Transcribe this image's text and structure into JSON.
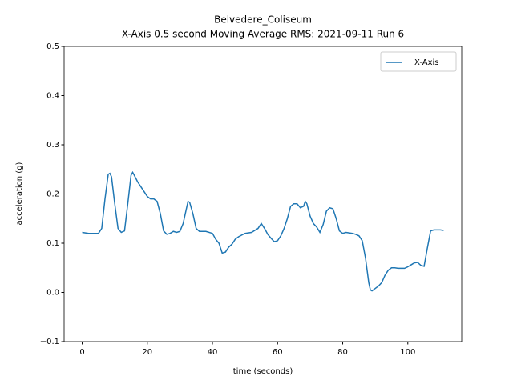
{
  "chart_data": {
    "type": "line",
    "title": "Belvedere_Coliseum",
    "subtitle": "X-Axis 0.5 second Moving Average RMS: 2021-09-11 Run 6",
    "x_label": "time (seconds)",
    "y_label": "acceleration (g)",
    "x": [
      0,
      2,
      4,
      5,
      6,
      7,
      8,
      8.5,
      9,
      10,
      11,
      12,
      13,
      14,
      15,
      15.5,
      16,
      17,
      18,
      19,
      20,
      21,
      22,
      23,
      24,
      25,
      26,
      27,
      28,
      29,
      30,
      31,
      32,
      32.5,
      33,
      34,
      35,
      36,
      38,
      40,
      41,
      42,
      43,
      44,
      45,
      46,
      47,
      48,
      50,
      52,
      54,
      55,
      56,
      57,
      58,
      59,
      60,
      61,
      62,
      63,
      64,
      65,
      66,
      67,
      68,
      68.5,
      69,
      70,
      71,
      72,
      73,
      74,
      75,
      76,
      77,
      78,
      79,
      80,
      81,
      82,
      83,
      84,
      85,
      86,
      87,
      88,
      88.5,
      89,
      90,
      91,
      92,
      93,
      94,
      95,
      96,
      97,
      98,
      99,
      100,
      101,
      102,
      103,
      104,
      105,
      106,
      107,
      108,
      110,
      111
    ],
    "series": [
      {
        "name": "X-Axis",
        "color": "#1f77b4",
        "values": [
          0.122,
          0.12,
          0.12,
          0.12,
          0.13,
          0.19,
          0.24,
          0.242,
          0.235,
          0.18,
          0.13,
          0.122,
          0.125,
          0.18,
          0.238,
          0.244,
          0.238,
          0.225,
          0.215,
          0.205,
          0.195,
          0.19,
          0.19,
          0.185,
          0.16,
          0.125,
          0.118,
          0.12,
          0.124,
          0.122,
          0.124,
          0.14,
          0.17,
          0.185,
          0.183,
          0.16,
          0.13,
          0.124,
          0.124,
          0.12,
          0.108,
          0.1,
          0.08,
          0.082,
          0.092,
          0.098,
          0.108,
          0.113,
          0.12,
          0.122,
          0.13,
          0.14,
          0.13,
          0.118,
          0.11,
          0.103,
          0.105,
          0.115,
          0.13,
          0.15,
          0.175,
          0.18,
          0.18,
          0.172,
          0.175,
          0.185,
          0.18,
          0.155,
          0.14,
          0.133,
          0.122,
          0.138,
          0.165,
          0.172,
          0.17,
          0.15,
          0.125,
          0.12,
          0.122,
          0.121,
          0.12,
          0.118,
          0.115,
          0.105,
          0.07,
          0.02,
          0.005,
          0.003,
          0.008,
          0.013,
          0.02,
          0.035,
          0.045,
          0.05,
          0.05,
          0.049,
          0.049,
          0.049,
          0.052,
          0.056,
          0.06,
          0.061,
          0.055,
          0.053,
          0.09,
          0.125,
          0.127,
          0.127,
          0.126
        ]
      }
    ],
    "xlim": [
      -5.55,
      116.55
    ],
    "xticks": [
      0,
      20,
      40,
      60,
      80,
      100
    ],
    "ylim": [
      -0.1,
      0.5
    ],
    "yticks": [
      {
        "value": -0.1,
        "label": "−0.1"
      },
      {
        "value": 0,
        "label": "0.0"
      },
      0.1,
      0.2,
      0.3,
      0.4,
      0.5
    ],
    "legend": "upper right",
    "grid": false
  }
}
